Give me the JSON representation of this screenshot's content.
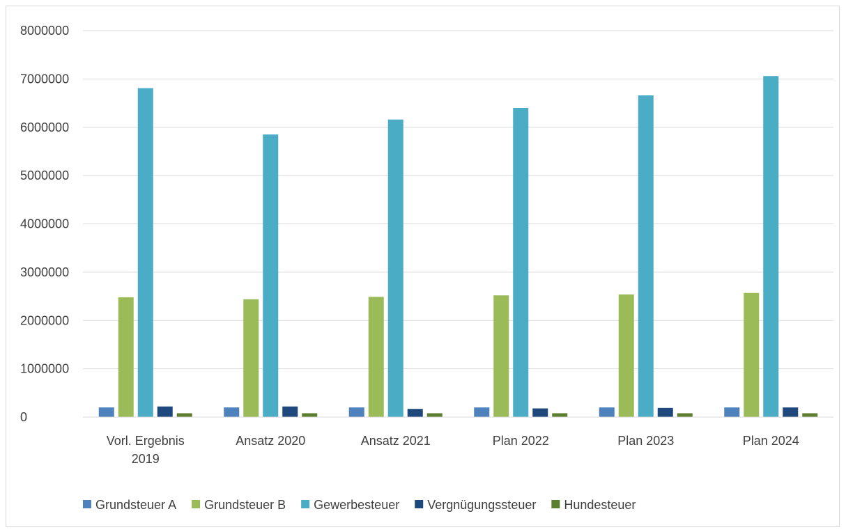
{
  "chart_data": {
    "type": "bar",
    "title": "",
    "xlabel": "",
    "ylabel": "",
    "ylim": [
      0,
      8000000
    ],
    "yticks": [
      0,
      1000000,
      2000000,
      3000000,
      4000000,
      5000000,
      6000000,
      7000000,
      8000000
    ],
    "yticklabels": [
      "0",
      "1000000",
      "2000000",
      "3000000",
      "4000000",
      "5000000",
      "6000000",
      "7000000",
      "8000000"
    ],
    "grid": true,
    "legend_position": "bottom",
    "categories": [
      [
        "Vorl. Ergebnis",
        "2019"
      ],
      [
        "Ansatz 2020"
      ],
      [
        "Ansatz 2021"
      ],
      [
        "Plan 2022"
      ],
      [
        "Plan 2023"
      ],
      [
        "Plan 2024"
      ]
    ],
    "series": [
      {
        "name": "Grundsteuer A",
        "color": "#4f81bd",
        "values": [
          200000,
          200000,
          200000,
          200000,
          200000,
          200000
        ]
      },
      {
        "name": "Grundsteuer B",
        "color": "#9bbb59",
        "values": [
          2480000,
          2440000,
          2490000,
          2520000,
          2540000,
          2570000
        ]
      },
      {
        "name": "Gewerbesteuer",
        "color": "#4bacc6",
        "values": [
          6810000,
          5850000,
          6160000,
          6400000,
          6660000,
          7060000
        ]
      },
      {
        "name": "Vergnügungssteuer",
        "color": "#1f497d",
        "values": [
          220000,
          220000,
          170000,
          180000,
          190000,
          200000
        ]
      },
      {
        "name": "Hundesteuer",
        "color": "#5e7e2f",
        "values": [
          80000,
          80000,
          80000,
          80000,
          80000,
          80000
        ]
      }
    ]
  }
}
